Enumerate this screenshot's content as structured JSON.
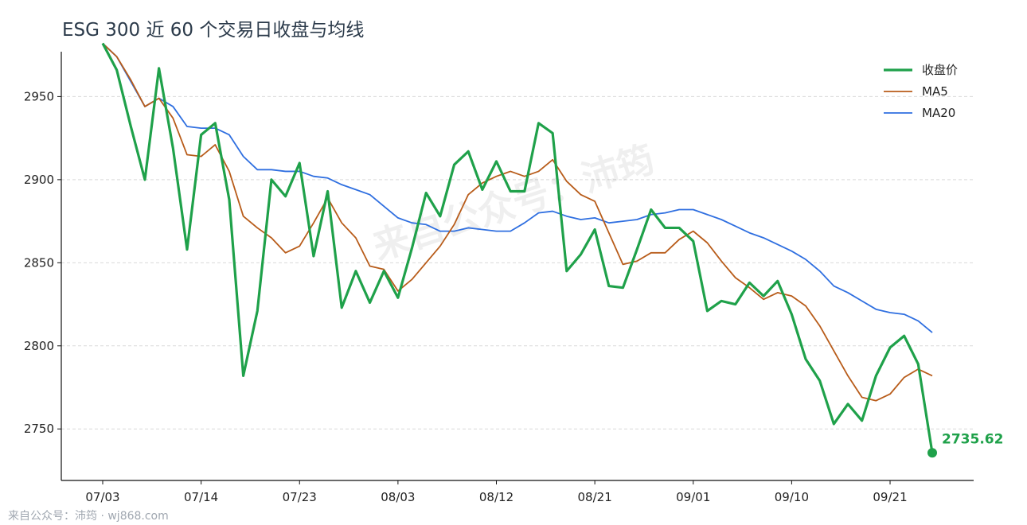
{
  "chart_data": {
    "type": "line",
    "title": "ESG 300 近 60 个交易日收盘与均线",
    "xlabel": "",
    "ylabel": "",
    "ylim": [
      2719,
      2977
    ],
    "yticks": [
      2750,
      2800,
      2850,
      2900,
      2950
    ],
    "x_tick_labels": [
      "07/03",
      "07/14",
      "07/23",
      "08/03",
      "08/12",
      "08/21",
      "09/01",
      "09/10",
      "09/21"
    ],
    "x_tick_indices": [
      0,
      7,
      14,
      21,
      28,
      35,
      42,
      49,
      56
    ],
    "grid": "y-dashed",
    "legend_position": "top-right",
    "last_value_label": "2735.62",
    "series": [
      {
        "name": "收盘价",
        "color": "#1fa14a",
        "values": [
          2982,
          2966,
          2932,
          2900,
          2967,
          2919,
          2858,
          2927,
          2934,
          2888,
          2782,
          2821,
          2900,
          2890,
          2910,
          2854,
          2893,
          2823,
          2845,
          2826,
          2845,
          2829,
          2859,
          2892,
          2878,
          2909,
          2917,
          2894,
          2911,
          2893,
          2893,
          2934,
          2928,
          2845,
          2855,
          2870,
          2836,
          2835,
          2858,
          2882,
          2871,
          2871,
          2863,
          2821,
          2827,
          2825,
          2838,
          2830,
          2839,
          2819,
          2792,
          2779,
          2753,
          2765,
          2755,
          2782,
          2799,
          2806,
          2789,
          2735.62
        ]
      },
      {
        "name": "MA5",
        "color": "#b85c1a",
        "values": [
          2982,
          2974,
          2960,
          2944,
          2949,
          2937,
          2915,
          2914,
          2921,
          2905,
          2878,
          2871,
          2865,
          2856,
          2860,
          2874,
          2889,
          2874,
          2865,
          2848,
          2846,
          2833,
          2840,
          2850,
          2860,
          2873,
          2891,
          2898,
          2902,
          2905,
          2902,
          2905,
          2912,
          2899,
          2891,
          2887,
          2868,
          2849,
          2851,
          2856,
          2856,
          2864,
          2869,
          2862,
          2851,
          2841,
          2835,
          2828,
          2832,
          2830,
          2824,
          2812,
          2797,
          2782,
          2769,
          2767,
          2771,
          2781,
          2786,
          2782
        ]
      },
      {
        "name": "MA20",
        "color": "#2f6fe0",
        "values": [
          2982,
          2974,
          2959,
          2944,
          2949,
          2944,
          2932,
          2931,
          2931,
          2927,
          2914,
          2906,
          2906,
          2905,
          2905,
          2902,
          2901,
          2897,
          2894,
          2891,
          2884,
          2877,
          2874,
          2873,
          2869,
          2869,
          2871,
          2870,
          2869,
          2869,
          2874,
          2880,
          2881,
          2878,
          2876,
          2877,
          2874,
          2875,
          2876,
          2879,
          2880,
          2882,
          2882,
          2879,
          2876,
          2872,
          2868,
          2865,
          2861,
          2857,
          2852,
          2845,
          2836,
          2832,
          2827,
          2822,
          2820,
          2819,
          2815,
          2808
        ]
      }
    ]
  },
  "watermark": "来自公众号：沛筠",
  "footer": "来自公众号：沛筠 · wj868.com"
}
